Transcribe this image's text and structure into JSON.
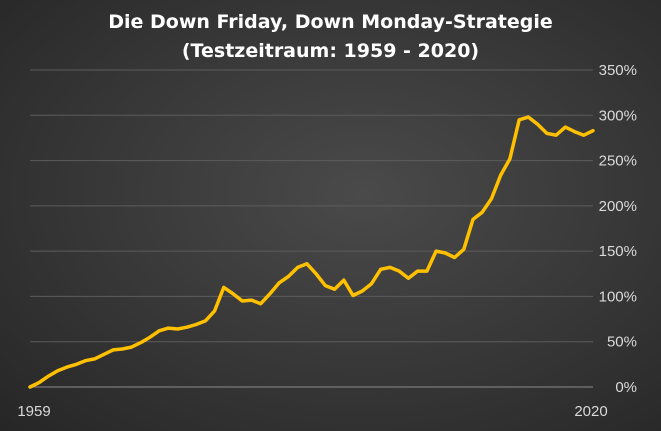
{
  "chart_data": {
    "type": "line",
    "title": "Die Down Friday, Down Monday-Strategie",
    "subtitle": "(Testzeitraum:  1959  -  2020)",
    "xlabel": "",
    "ylabel": "",
    "x_tick_labels": [
      "1959",
      "2020"
    ],
    "y_tick_labels": [
      "0%",
      "50%",
      "100%",
      "150%",
      "200%",
      "250%",
      "300%",
      "350%"
    ],
    "xlim": [
      1959,
      2020
    ],
    "ylim": [
      0,
      350
    ],
    "grid": "horizontal",
    "legend": "none",
    "line_color": "#FFC000",
    "series": [
      {
        "x": [
          1959,
          1960,
          1961,
          1962,
          1963,
          1964,
          1965,
          1966,
          1967,
          1968,
          1969,
          1970,
          1971,
          1972,
          1973,
          1974,
          1975,
          1976,
          1977,
          1978,
          1979,
          1980,
          1981,
          1982,
          1983,
          1984,
          1985,
          1986,
          1987,
          1988,
          1989,
          1990,
          1991,
          1992,
          1993,
          1994,
          1995,
          1996,
          1997,
          1998,
          1999,
          2000,
          2001,
          2002,
          2003,
          2004,
          2005,
          2006,
          2007,
          2008,
          2009,
          2010,
          2011,
          2012,
          2013,
          2014,
          2015,
          2016,
          2017,
          2018,
          2019,
          2020
        ],
        "values": [
          0,
          5,
          12,
          18,
          22,
          25,
          29,
          31,
          36,
          41,
          42,
          44,
          49,
          55,
          62,
          65,
          64,
          66,
          69,
          73,
          84,
          110,
          103,
          95,
          96,
          92,
          103,
          115,
          122,
          132,
          136,
          125,
          112,
          108,
          118,
          101,
          106,
          114,
          130,
          132,
          128,
          120,
          128,
          128,
          150,
          148,
          143,
          152,
          185,
          193,
          208,
          234,
          252,
          295,
          298,
          290,
          280,
          278,
          287,
          282,
          278,
          283
        ]
      }
    ]
  }
}
